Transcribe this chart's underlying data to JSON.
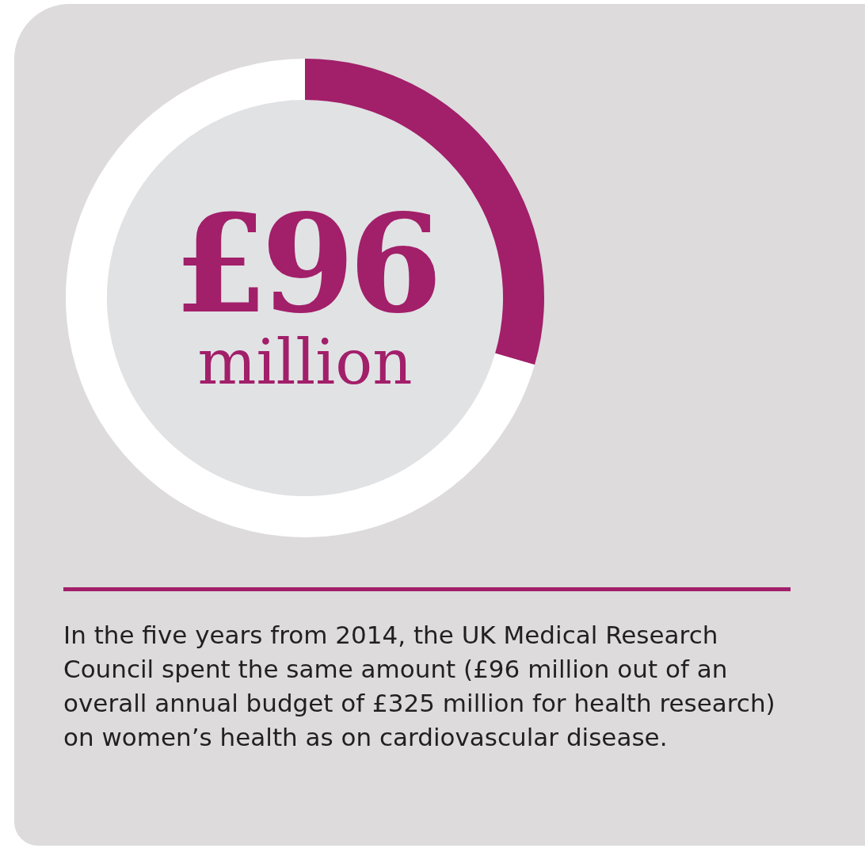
{
  "chart_data": {
    "type": "donut",
    "categories": [
      null,
      null
    ],
    "values": [
      29.5,
      70.5
    ],
    "colors": [
      "#a21f6a",
      "#ffffff"
    ],
    "annotations": [
      "£96",
      "million",
      "In the five years from 2014, the UK Medical Research Council spent the same amount (£96 million out of an overall annual budget of £325 million for health research) on women’s health as on cardiovascular disease."
    ]
  }
}
